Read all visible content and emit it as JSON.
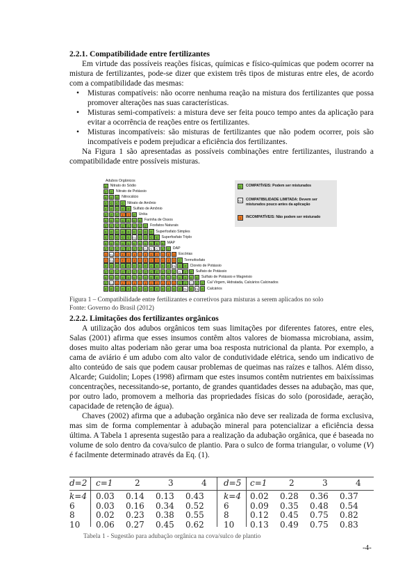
{
  "section1": {
    "heading": "2.2.1. Compatibilidade entre fertilizantes",
    "intro": "Em virtude das possíveis reações físicas, químicas e físico-químicas que podem ocorrer na mistura de fertilizantes, pode-se dizer que existem três tipos de misturas entre eles, de acordo com a compatibilidade das mesmas:",
    "bullets": [
      "Misturas compatíveis: não ocorre nenhuma reação na mistura dos fertilizantes que possa promover alterações nas suas características.",
      "Misturas semi-compatíveis: a mistura deve ser feita pouco tempo antes da aplicação para evitar a ocorrência de reações entre os fertilizantes.",
      "Misturas incompatíveis: são misturas de fertilizantes que não podem ocorrer, pois são incompatíveis e podem prejudicar a eficiência dos fertilizantes."
    ],
    "closing": "Na Figura 1 são apresentadas as possíveis combinações entre fertilizantes, ilustrando a compatibilidade entre possíveis misturas."
  },
  "figure1": {
    "matrix_title": "Adubos Orgânicos",
    "rows": [
      {
        "label": "Nitrato do Sódio",
        "cells": "C"
      },
      {
        "label": "Nitrato de Potássio",
        "cells": "CC"
      },
      {
        "label": "Nitrocálcio",
        "cells": "CCC"
      },
      {
        "label": "Nitrato de Amônio",
        "cells": "CCCC"
      },
      {
        "label": "Sulfato de Amônio",
        "cells": "CCCCC"
      },
      {
        "label": "Uréia",
        "cells": "CCCIIC"
      },
      {
        "label": "Farinha de Ossos",
        "cells": "CCCCCCC"
      },
      {
        "label": "Fosfatos Naturais",
        "cells": "CCCCCCCC"
      },
      {
        "label": "Superfosfato Simples",
        "cells": "CCCCCCCCC"
      },
      {
        "label": "Superfosfato Triplo",
        "cells": "CCCCCLCCCC"
      },
      {
        "label": "MAP",
        "cells": "CCCCCCCCCCC"
      },
      {
        "label": "DAP",
        "cells": "CCCCCCCLLLCC"
      },
      {
        "label": "Escórias",
        "cells": "ILIIIIIIIIIII"
      },
      {
        "label": "Termofosfato",
        "cells": "ILIIIIIIIIIIIC"
      },
      {
        "label": "Cloreto de Potássio",
        "cells": "CCCCCCCCCCCCLCC"
      },
      {
        "label": "Sulfato de Potássio",
        "cells": "CCCCCCCCCCCCCLCC"
      },
      {
        "label": "Sulfato de Potássio e Magnésio",
        "cells": "CCCCCCCCCCCCCCCCC"
      },
      {
        "label": "Cal Virgem, Hidratada, Calcários Calcinados",
        "cells": "CLIIIIIIIIIIICCLCC"
      },
      {
        "label": "Calcários",
        "cells": "CCCCCCCCCCCCCCLCLC"
      }
    ],
    "legend": [
      {
        "code": "C",
        "text": "COMPATÍVEIS: Podem ser misturados",
        "color": "#7ac142"
      },
      {
        "code": "CL",
        "text": "COMPATIBILIDADE LIMITADA: Devem ser misturados pouco antes da aplicação",
        "color": "#ffffff"
      },
      {
        "code": "I",
        "text": "INCOMPATÍVEIS: Não podem ser misturado",
        "color": "#e87722"
      }
    ],
    "caption": "Figura 1 – Compatibilidade entre fertilizantes e corretivos para misturas a serem aplicados no solo",
    "source": "Fonte: Governo do Brasil (2012)"
  },
  "section2": {
    "heading": "2.2.2. Limitações dos fertilizantes orgânicos",
    "para1": "A utilização dos adubos orgânicos tem suas limitações por diferentes fatores, entre eles, Salas (2001) afirma que esses insumos contêm altos valores de biomassa microbiana, assim, doses muito altas poderiam não gerar uma boa resposta nutricional da planta. Por exemplo, a cama de aviário é um adubo com alto valor de condutividade elétrica, sendo um indicativo de alto conteúdo de sais que podem causar problemas de queimas nas raízes e talhos. Além disso, Alcarde; Guidolin; Lopes (1998) afirmam que estes insumos contêm nutrientes em baixíssimas concentrações, necessitando-se, portanto, de grandes quantidades desses na adubação, mas que, por outro lado, promovem a melhoria das propriedades físicas do solo (porosidade, aeração, capacidade de retenção de água).",
    "para2_a": "Chaves (2002) afirma que a adubação orgânica não deve ser realizada de forma exclusiva, mas sim de forma complementar à adubação mineral para potencializar a eficiência dessa última. A Tabela 1 apresenta sugestão para a realização da adubação orgânica, que é baseada no volume de solo dentro da cova/sulco de plantio. Para o sulco de forma triangular, o volume (",
    "para2_var": "V",
    "para2_b": ") é facilmente determinado através da Eq. (1)."
  },
  "table1": {
    "left": {
      "d_label": "d=2",
      "c_label": "c=1",
      "cols": [
        "2",
        "3",
        "4"
      ],
      "rows": [
        {
          "k": "k=4",
          "vals": [
            "0.03",
            "0.14",
            "0.13",
            "0.43"
          ]
        },
        {
          "k": "6",
          "vals": [
            "0.03",
            "0.16",
            "0.34",
            "0.52"
          ]
        },
        {
          "k": "8",
          "vals": [
            "0.02",
            "0.23",
            "0.38",
            "0.55"
          ]
        },
        {
          "k": "10",
          "vals": [
            "0.06",
            "0.27",
            "0.45",
            "0.62"
          ]
        }
      ]
    },
    "right": {
      "d_label": "d=5",
      "c_label": "c=1",
      "cols": [
        "2",
        "3",
        "4"
      ],
      "rows": [
        {
          "k": "k=4",
          "vals": [
            "0.02",
            "0.28",
            "0.36",
            "0.37"
          ]
        },
        {
          "k": "6",
          "vals": [
            "0.09",
            "0.35",
            "0.48",
            "0.54"
          ]
        },
        {
          "k": "8",
          "vals": [
            "0.12",
            "0.45",
            "0.75",
            "0.82"
          ]
        },
        {
          "k": "10",
          "vals": [
            "0.13",
            "0.49",
            "0.75",
            "0.83"
          ]
        }
      ]
    },
    "caption": "Tabela 1 - Sugestão para adubação orgânica na cova/sulco de plantio"
  },
  "page_number": "-4-"
}
